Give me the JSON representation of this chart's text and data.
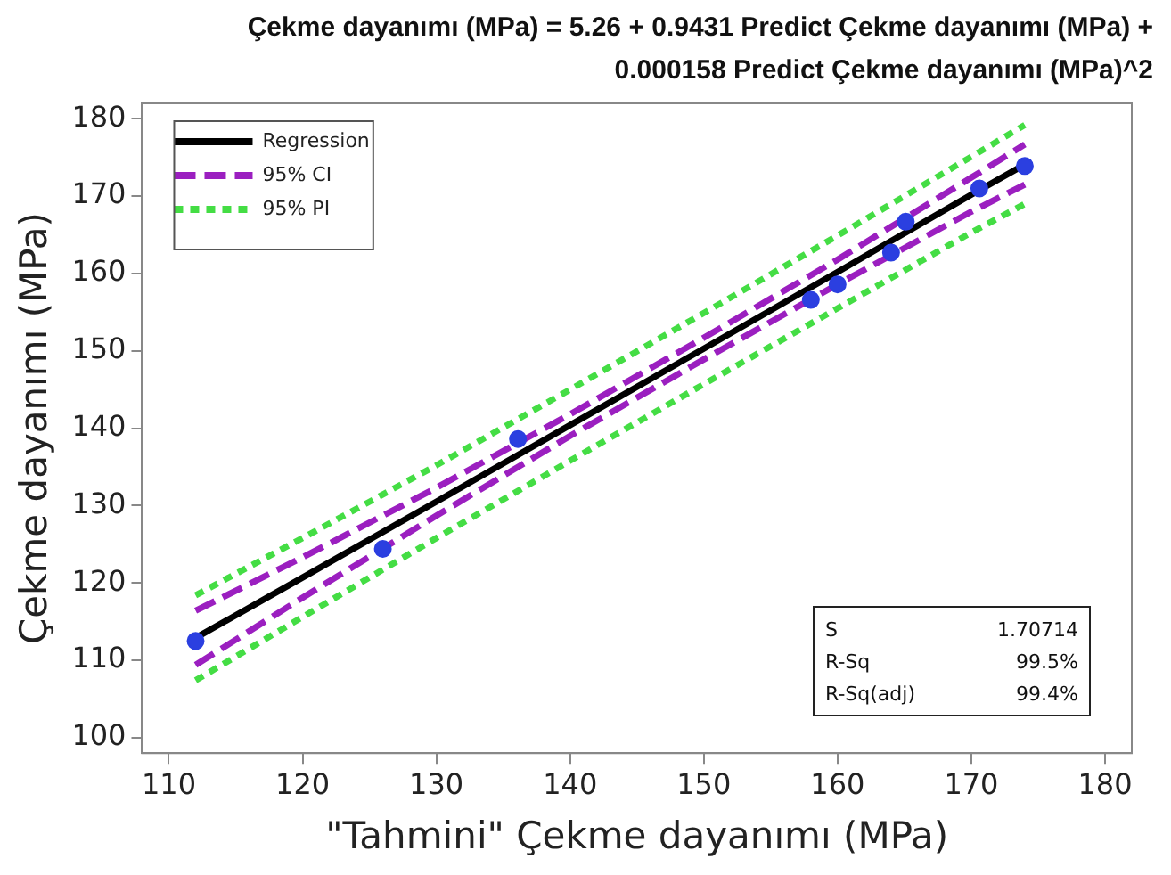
{
  "chart_data": {
    "type": "scatter",
    "title": "Çekme dayanımı (MPa) = 5.26 + 0.9431 Predict Çekme dayanımı (MPa) + 0.000158 Predict Çekme dayanımı (MPa)^2",
    "xlabel": "\"Tahmini\" Çekme dayanımı (MPa)",
    "ylabel": "Çekme dayanımı (MPa)",
    "x": [
      112,
      126,
      136.1,
      158,
      160,
      164,
      165.1,
      170.6,
      174
    ],
    "series": [
      {
        "type": "scatter",
        "color": "#2b3fe0",
        "marker": "circle",
        "values": [
          112.5,
          124.4,
          138.6,
          156.6,
          158.6,
          162.7,
          166.7,
          171,
          173.9
        ]
      },
      {
        "type": "line",
        "name": "Regression",
        "color": "#000000",
        "line_style": "solid",
        "marker": "none",
        "x": [
          112,
          120,
          130,
          140,
          150,
          160,
          170,
          174
        ],
        "values": [
          112.9,
          120.7,
          130.5,
          140.4,
          150.3,
          160.2,
          170.2,
          174.1
        ]
      },
      {
        "type": "line",
        "name": "95% CI",
        "color": "#9b1fc0",
        "line_style": "dashed",
        "marker": "none",
        "x": [
          112,
          120,
          130,
          140,
          150,
          160,
          170,
          174
        ],
        "values": [
          116.4,
          123.3,
          132.3,
          141.8,
          151.7,
          161.8,
          172.4,
          176.7
        ]
      },
      {
        "type": "line",
        "color": "#9b1fc0",
        "line_style": "dashed",
        "marker": "none",
        "x": [
          112,
          120,
          130,
          140,
          150,
          160,
          170,
          174
        ],
        "values": [
          109.4,
          118.1,
          128.7,
          139,
          148.9,
          158.6,
          168,
          171.5
        ]
      },
      {
        "type": "line",
        "name": "95% PI",
        "color": "#44dd44",
        "line_style": "dotted",
        "marker": "none",
        "x": [
          112,
          120,
          130,
          140,
          150,
          160,
          170,
          174
        ],
        "values": [
          118.4,
          125.8,
          135.2,
          145,
          154.9,
          164.9,
          175.1,
          179.2
        ]
      },
      {
        "type": "line",
        "color": "#44dd44",
        "line_style": "dotted",
        "marker": "none",
        "x": [
          112,
          120,
          130,
          140,
          150,
          160,
          170,
          174
        ],
        "values": [
          107.4,
          115.6,
          125.8,
          135.8,
          145.7,
          155.5,
          165.3,
          169
        ]
      }
    ],
    "xlim": [
      108,
      182
    ],
    "xticks": [
      110,
      120,
      130,
      140,
      150,
      160,
      170,
      180
    ],
    "ylim": [
      98,
      182
    ],
    "yticks": [
      100,
      110,
      120,
      130,
      140,
      150,
      160,
      170,
      180
    ],
    "grid": false,
    "legend": "top left",
    "annotations": [
      "S",
      "1.70714",
      "R-Sq",
      "99.5%",
      "R-Sq(adj)",
      "99.4%"
    ]
  }
}
